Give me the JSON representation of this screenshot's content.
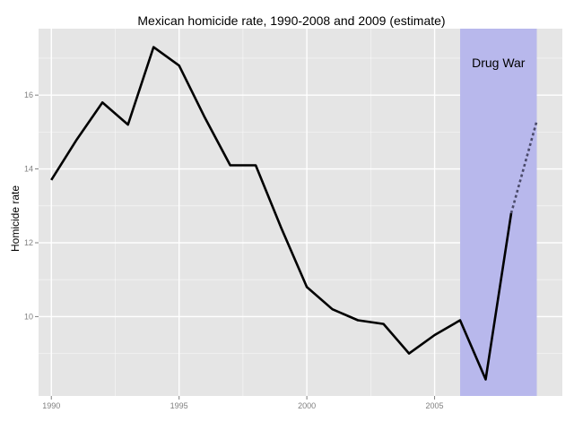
{
  "chart_data": {
    "type": "line",
    "title": "Mexican homicide rate, 1990-2008 and 2009 (estimate)",
    "xlabel": "",
    "ylabel": "Homicide rate",
    "xlim": [
      1989.5,
      2010
    ],
    "ylim": [
      7.85,
      17.8
    ],
    "x_ticks": [
      1990,
      1995,
      2000,
      2005
    ],
    "x_tick_labels": [
      "1990",
      "1995",
      "2000",
      "2005"
    ],
    "y_ticks": [
      10,
      12,
      14,
      16
    ],
    "y_tick_labels": [
      "10",
      "12",
      "14",
      "16"
    ],
    "grid": true,
    "series": [
      {
        "style": "solid",
        "x": [
          1990,
          1991,
          1992,
          1993,
          1994,
          1995,
          1996,
          1997,
          1998,
          1999,
          2000,
          2001,
          2002,
          2003,
          2004,
          2005,
          2006,
          2007,
          2008
        ],
        "values": [
          13.7,
          14.8,
          15.8,
          15.2,
          17.3,
          16.8,
          15.4,
          14.1,
          14.1,
          12.4,
          10.8,
          10.2,
          9.9,
          9.8,
          9.0,
          9.5,
          9.9,
          8.3,
          12.8
        ]
      },
      {
        "style": "dotted",
        "x": [
          2008,
          2009
        ],
        "values": [
          12.8,
          15.3
        ]
      }
    ],
    "shaded_region": {
      "x": [
        2006,
        2009
      ],
      "color": "#b8b8ec",
      "label": "Drug War"
    },
    "colors": {
      "panel": "#e5e5e5",
      "grid": "#ffffff",
      "line": "#000000",
      "dotted_line": "#4a4a6a"
    }
  }
}
